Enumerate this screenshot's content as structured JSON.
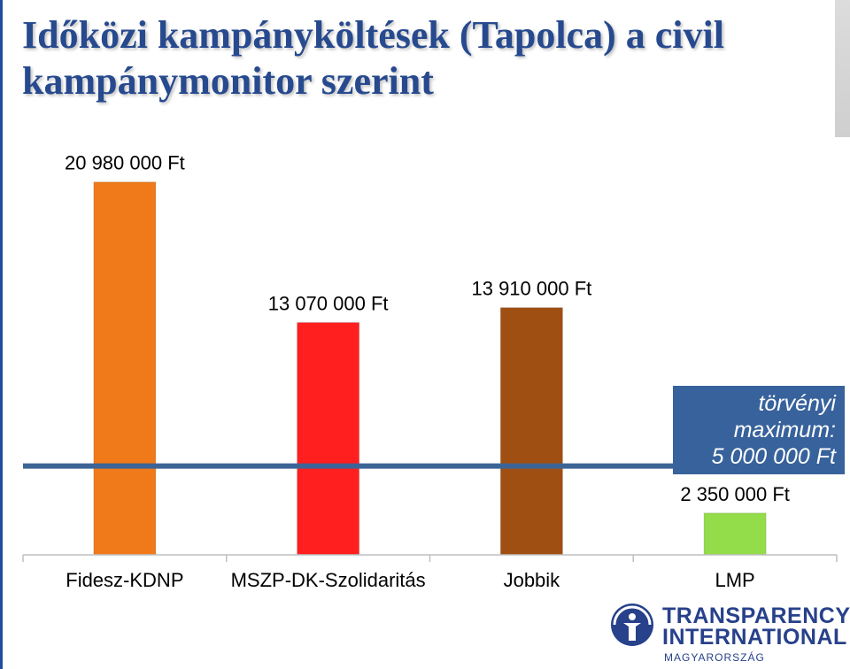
{
  "slide": {
    "title": "Időközi kampányköltések (Tapolca) a civil kampánymonitor szerint"
  },
  "legal_limit": {
    "label_line1": "törvényi",
    "label_line2": "maximum:",
    "label_line3": "5 000 000 Ft",
    "value": 5000000,
    "color": "#3d6496"
  },
  "chart_data": {
    "type": "bar",
    "categories": [
      "Fidesz-KDNP",
      "MSZP-DK-Szolidaritás",
      "Jobbik",
      "LMP"
    ],
    "values": [
      20980000,
      13070000,
      13910000,
      2350000
    ],
    "value_labels": [
      "20 980 000 Ft",
      "13 070 000 Ft",
      "13 910 000 Ft",
      "2 350 000 Ft"
    ],
    "colors": [
      "#f07a1a",
      "#ff1f1f",
      "#a04f12",
      "#93dc4a"
    ],
    "ylim": [
      0,
      25000000
    ],
    "grid": false
  },
  "logo": {
    "line1": "TRANSPARENCY",
    "line2": "INTERNATIONAL",
    "line3": "MAGYARORSZÁG",
    "color": "#27418a"
  }
}
